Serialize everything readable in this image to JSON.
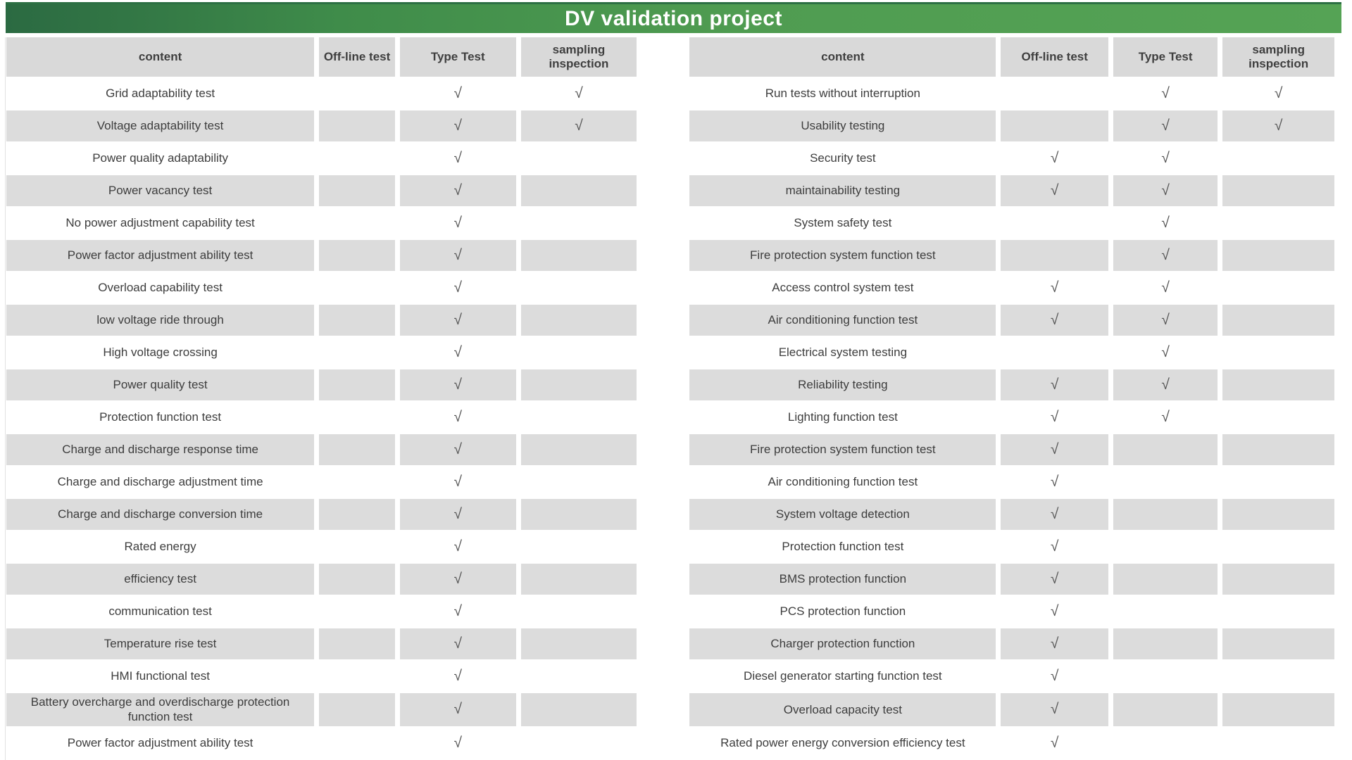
{
  "title_bar": {
    "label": "DV validation project"
  },
  "headers": {
    "left": [
      "content",
      "Off-line test",
      "Type Test",
      "sampling inspection"
    ],
    "right": [
      "content",
      "Off-line test",
      "Type Test",
      "sampling inspection"
    ]
  },
  "check_symbol": "√",
  "left_rows": [
    {
      "content": "Grid adaptability test",
      "offline": "",
      "type": "√",
      "sampling": "√"
    },
    {
      "content": "Voltage adaptability test",
      "offline": "",
      "type": "√",
      "sampling": "√"
    },
    {
      "content": "Power quality adaptability",
      "offline": "",
      "type": "√",
      "sampling": ""
    },
    {
      "content": "Power vacancy test",
      "offline": "",
      "type": "√",
      "sampling": ""
    },
    {
      "content": "No power adjustment capability test",
      "offline": "",
      "type": "√",
      "sampling": ""
    },
    {
      "content": "Power factor adjustment ability test",
      "offline": "",
      "type": "√",
      "sampling": ""
    },
    {
      "content": "Overload capability test",
      "offline": "",
      "type": "√",
      "sampling": ""
    },
    {
      "content": "low voltage ride through",
      "offline": "",
      "type": "√",
      "sampling": ""
    },
    {
      "content": "High voltage crossing",
      "offline": "",
      "type": "√",
      "sampling": ""
    },
    {
      "content": "Power quality test",
      "offline": "",
      "type": "√",
      "sampling": ""
    },
    {
      "content": "Protection function test",
      "offline": "",
      "type": "√",
      "sampling": ""
    },
    {
      "content": "Charge and discharge response time",
      "offline": "",
      "type": "√",
      "sampling": ""
    },
    {
      "content": "Charge and discharge adjustment time",
      "offline": "",
      "type": "√",
      "sampling": ""
    },
    {
      "content": "Charge and discharge conversion time",
      "offline": "",
      "type": "√",
      "sampling": ""
    },
    {
      "content": "Rated energy",
      "offline": "",
      "type": "√",
      "sampling": ""
    },
    {
      "content": "efficiency test",
      "offline": "",
      "type": "√",
      "sampling": ""
    },
    {
      "content": "communication test",
      "offline": "",
      "type": "√",
      "sampling": ""
    },
    {
      "content": "Temperature rise test",
      "offline": "",
      "type": "√",
      "sampling": ""
    },
    {
      "content": "HMI functional test",
      "offline": "",
      "type": "√",
      "sampling": ""
    },
    {
      "content": "Battery overcharge and overdischarge protection function test",
      "offline": "",
      "type": "√",
      "sampling": ""
    },
    {
      "content": "Power factor adjustment ability test",
      "offline": "",
      "type": "√",
      "sampling": ""
    }
  ],
  "right_rows": [
    {
      "content": "Run tests without interruption",
      "offline": "",
      "type": "√",
      "sampling": "√"
    },
    {
      "content": "Usability testing",
      "offline": "",
      "type": "√",
      "sampling": "√"
    },
    {
      "content": "Security test",
      "offline": "√",
      "type": "√",
      "sampling": ""
    },
    {
      "content": "maintainability testing",
      "offline": "√",
      "type": "√",
      "sampling": ""
    },
    {
      "content": "System safety test",
      "offline": "",
      "type": "√",
      "sampling": ""
    },
    {
      "content": "Fire protection system function test",
      "offline": "",
      "type": "√",
      "sampling": ""
    },
    {
      "content": "Access control system test",
      "offline": "√",
      "type": "√",
      "sampling": ""
    },
    {
      "content": "Air conditioning function test",
      "offline": "√",
      "type": "√",
      "sampling": ""
    },
    {
      "content": "Electrical system testing",
      "offline": "",
      "type": "√",
      "sampling": ""
    },
    {
      "content": "Reliability testing",
      "offline": "√",
      "type": "√",
      "sampling": ""
    },
    {
      "content": "Lighting function test",
      "offline": "√",
      "type": "√",
      "sampling": ""
    },
    {
      "content": "Fire protection system function test",
      "offline": "√",
      "type": "",
      "sampling": ""
    },
    {
      "content": "Air conditioning function test",
      "offline": "√",
      "type": "",
      "sampling": ""
    },
    {
      "content": "System voltage detection",
      "offline": "√",
      "type": "",
      "sampling": ""
    },
    {
      "content": "Protection function test",
      "offline": "√",
      "type": "",
      "sampling": ""
    },
    {
      "content": "BMS protection function",
      "offline": "√",
      "type": "",
      "sampling": ""
    },
    {
      "content": "PCS protection function",
      "offline": "√",
      "type": "",
      "sampling": ""
    },
    {
      "content": "Charger protection function",
      "offline": "√",
      "type": "",
      "sampling": ""
    },
    {
      "content": "Diesel generator starting function test",
      "offline": "√",
      "type": "",
      "sampling": ""
    },
    {
      "content": "Overload capacity test",
      "offline": "√",
      "type": "",
      "sampling": ""
    },
    {
      "content": "Rated power energy conversion efficiency test",
      "offline": "√",
      "type": "",
      "sampling": ""
    }
  ],
  "colors": {
    "title_green_dark": "#2b6a42",
    "title_green_light": "#55a355",
    "header_gray": "#d9d9d9",
    "row_gray": "#dcdcdc",
    "text_gray": "#3d3d3d",
    "check_gray": "#555555"
  }
}
